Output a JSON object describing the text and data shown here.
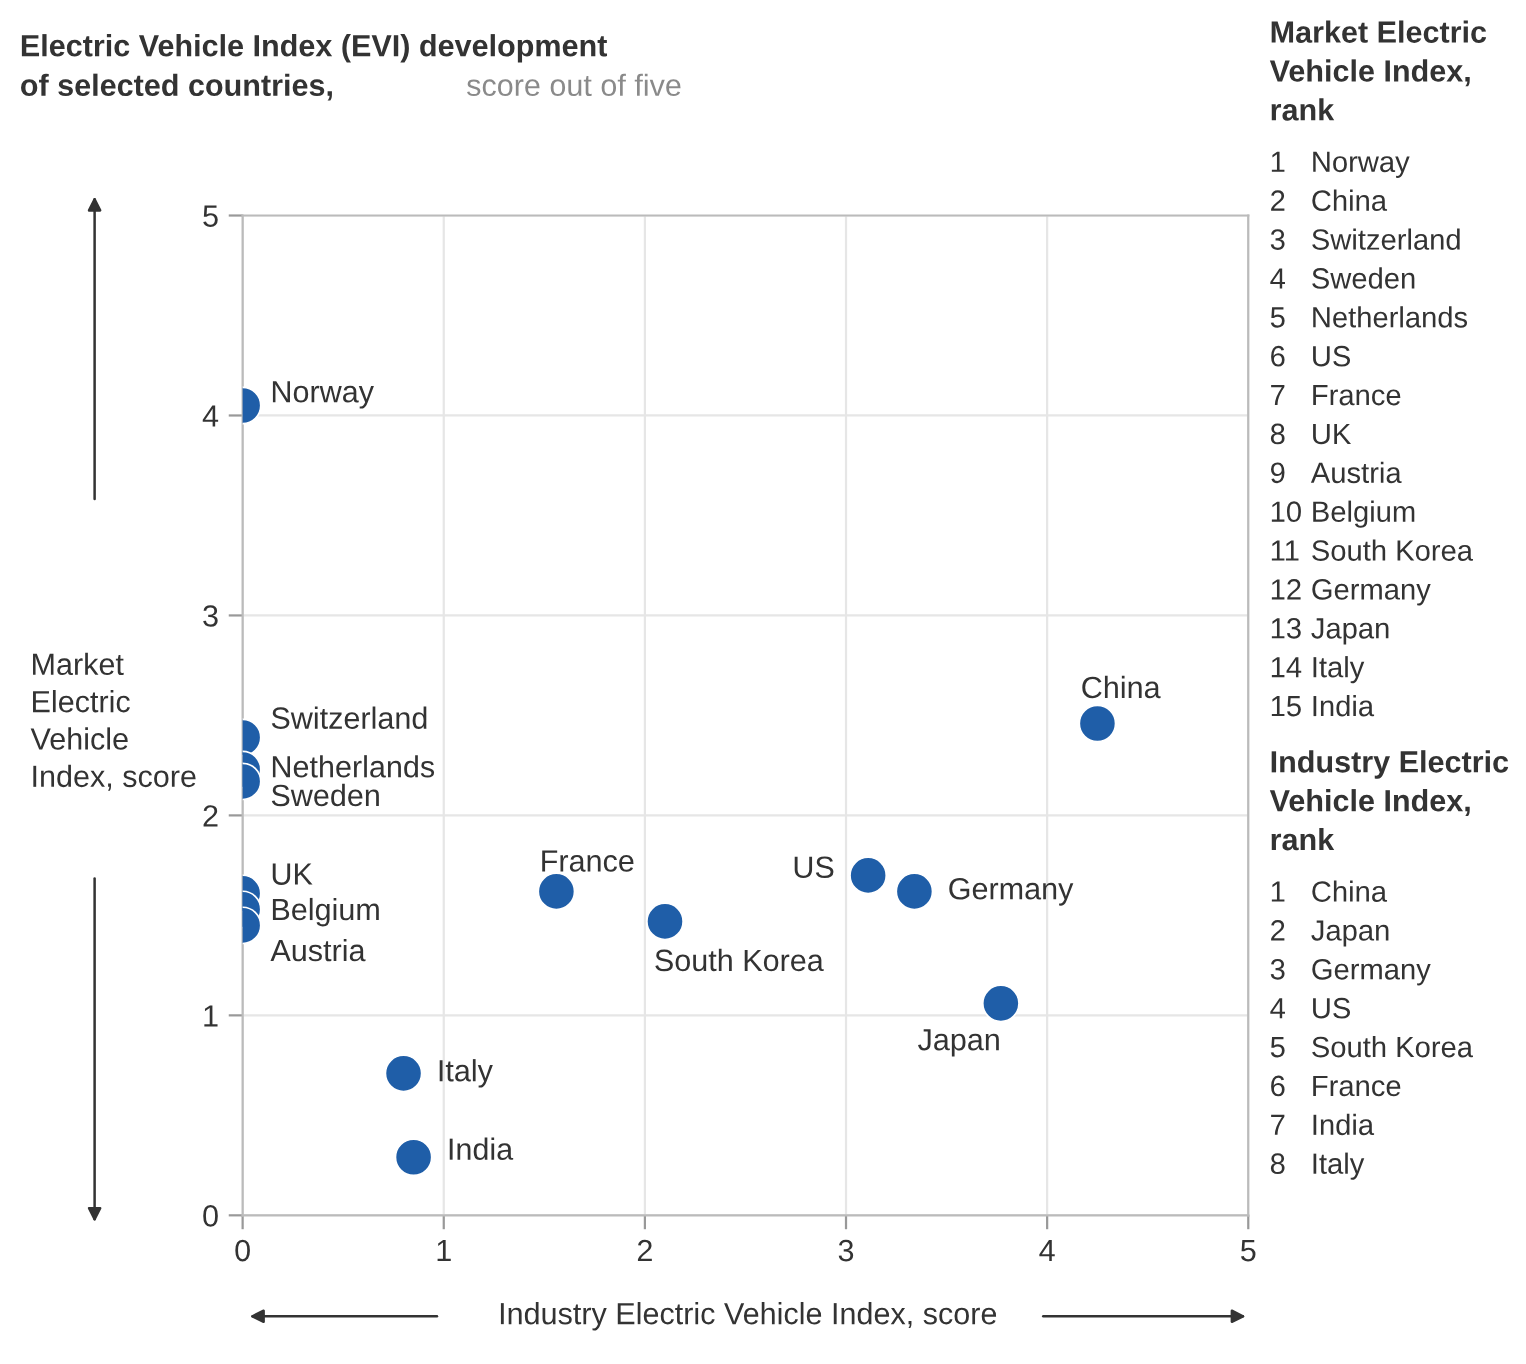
{
  "chart_data": {
    "type": "scatter",
    "title": "Electric Vehicle Index (EVI) development\nof selected countries,",
    "subtitle": "score out of five",
    "xlabel": "Industry Electric Vehicle Index, score",
    "ylabel": "Market\nElectric\nVehicle\nIndex, score",
    "xlim": [
      0,
      5
    ],
    "ylim": [
      0,
      5
    ],
    "xticks": [
      0,
      1,
      2,
      3,
      4,
      5
    ],
    "yticks": [
      0,
      1,
      2,
      3,
      4,
      5
    ],
    "grid": true,
    "marker": "circle",
    "series": [
      {
        "color": "#1f5ea8",
        "x": [
          0,
          0,
          0,
          0,
          0,
          0,
          0,
          1.56,
          2.1,
          3.11,
          3.34,
          3.77,
          4.25,
          0.8,
          0.85
        ],
        "values": [
          4.05,
          2.39,
          2.23,
          2.17,
          1.61,
          1.53,
          1.45,
          1.62,
          1.47,
          1.7,
          1.62,
          1.06,
          2.46,
          0.71,
          0.29
        ]
      }
    ],
    "annotations": [
      {
        "text": "Norway",
        "x": 0,
        "y": 4.05
      },
      {
        "text": "Switzerland",
        "x": 0,
        "y": 2.39
      },
      {
        "text": "Netherlands",
        "x": 0,
        "y": 2.23
      },
      {
        "text": "Sweden",
        "x": 0,
        "y": 2.17
      },
      {
        "text": "UK",
        "x": 0,
        "y": 1.61
      },
      {
        "text": "Belgium",
        "x": 0,
        "y": 1.53
      },
      {
        "text": "Austria",
        "x": 0,
        "y": 1.45
      },
      {
        "text": "France",
        "x": 1.56,
        "y": 1.62
      },
      {
        "text": "South Korea",
        "x": 2.1,
        "y": 1.47
      },
      {
        "text": "US",
        "x": 3.11,
        "y": 1.7
      },
      {
        "text": "Germany",
        "x": 3.34,
        "y": 1.62
      },
      {
        "text": "Japan",
        "x": 3.77,
        "y": 1.06
      },
      {
        "text": "China",
        "x": 4.25,
        "y": 2.46
      },
      {
        "text": "Italy",
        "x": 0.8,
        "y": 0.71
      },
      {
        "text": "India",
        "x": 0.85,
        "y": 0.29
      },
      "Market Electric\nVehicle Index,\nrank",
      "1 Norway\n2 China\n3 Switzerland\n4 Sweden\n5 Netherlands\n6 US\n7 France\n8 UK\n9 Austria\n10 Belgium\n11 South Korea\n12 Germany\n13 Japan\n14 Italy\n15 India",
      "Industry Electric\nVehicle Index,\nrank",
      "1 China\n2 Japan\n3 Germany\n4 US\n5 South Korea\n6 France\n7 India\n8 Italy"
    ]
  }
}
